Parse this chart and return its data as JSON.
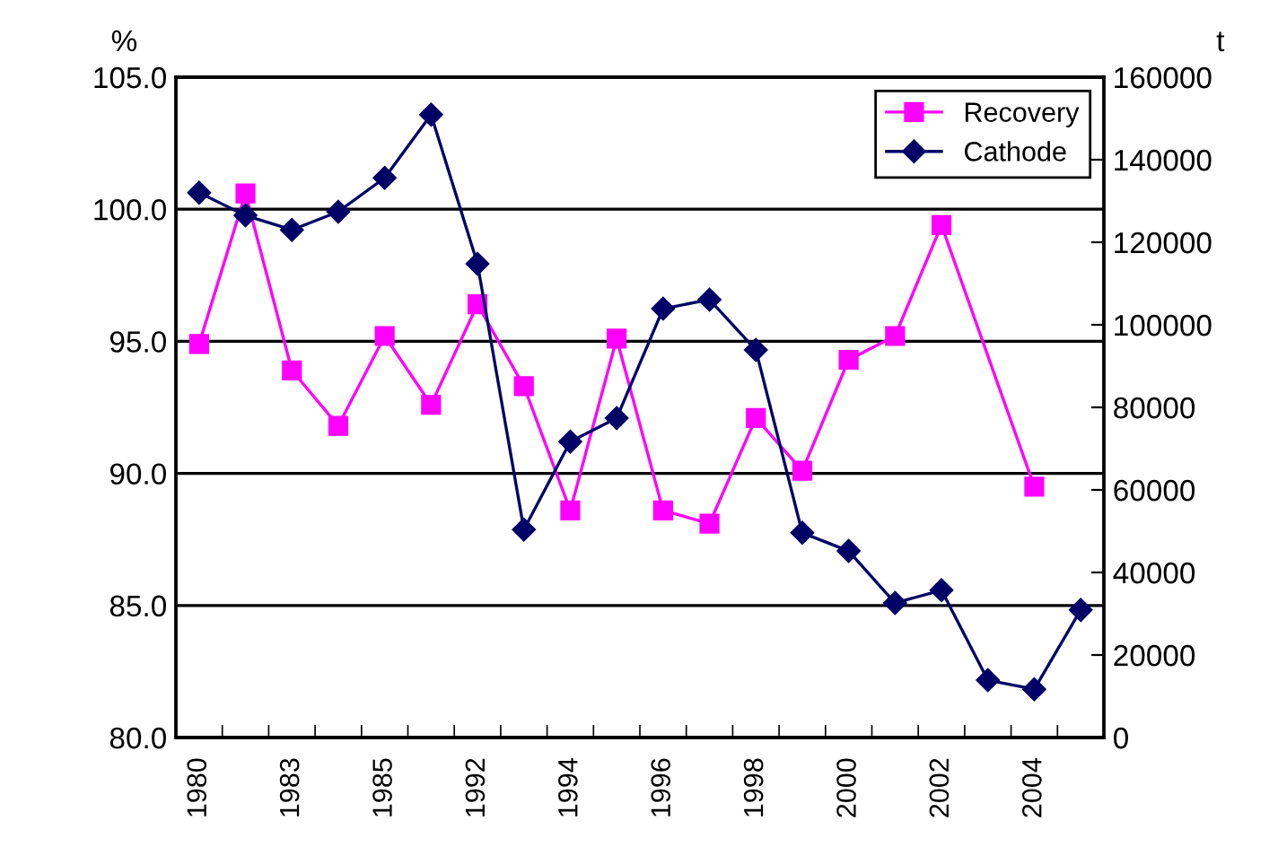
{
  "chart_data": {
    "type": "line",
    "ylabel": "%",
    "y2label": "t",
    "categories": [
      "1980",
      null,
      "1983",
      null,
      "1985",
      null,
      "1992",
      null,
      "1994",
      null,
      "1996",
      null,
      "1998",
      null,
      "2000",
      null,
      "2002",
      null,
      "2004",
      null
    ],
    "series": [
      {
        "name": "Recovery",
        "color": "#ff00ff",
        "marker": "square",
        "values": [
          94.9,
          100.6,
          93.9,
          91.8,
          95.2,
          92.6,
          96.4,
          93.3,
          88.6,
          95.1,
          88.6,
          88.1,
          92.1,
          90.1,
          94.3,
          95.2,
          99.4,
          null,
          89.5,
          null
        ]
      },
      {
        "name": "Cathode",
        "color": "#000066",
        "marker": "diamond",
        "axis": "y2",
        "values": [
          132000,
          126500,
          123000,
          127400,
          135600,
          150900,
          114800,
          50400,
          71700,
          77400,
          103900,
          106100,
          93900,
          49600,
          45200,
          32600,
          35700,
          13900,
          11700,
          30900
        ]
      }
    ],
    "ylim": [
      80,
      105
    ],
    "yticks": [
      {
        "value": 80,
        "label": "80.0"
      },
      {
        "value": 85,
        "label": "85.0"
      },
      {
        "value": 90,
        "label": "90.0"
      },
      {
        "value": 95,
        "label": "95.0"
      },
      {
        "value": 100,
        "label": "100.0"
      },
      {
        "value": 105,
        "label": "105.0"
      }
    ],
    "y2lim": [
      0,
      160000
    ],
    "y2ticks": [
      0,
      20000,
      40000,
      60000,
      80000,
      100000,
      120000,
      140000,
      160000
    ],
    "grid": "y",
    "legend": "top right"
  }
}
